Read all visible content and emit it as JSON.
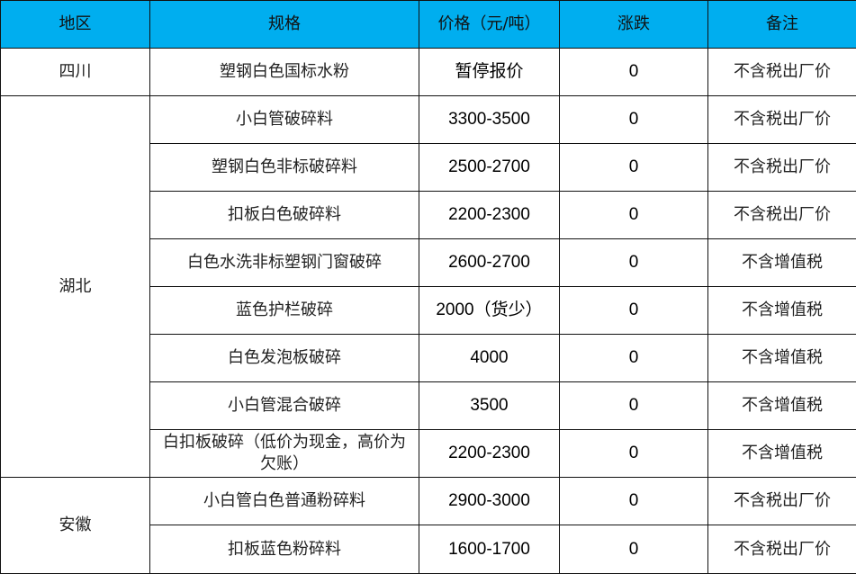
{
  "headers": [
    "地区",
    "规格",
    "价格（元/吨）",
    "涨跌",
    "备注"
  ],
  "colors": {
    "header_bg": "#00AEEF"
  },
  "groups": [
    {
      "region": "四川",
      "rows": [
        {
          "spec": "塑钢白色国标水粉",
          "price": "暂停报价",
          "change": "0",
          "note": "不含税出厂价"
        }
      ]
    },
    {
      "region": "湖北",
      "rows": [
        {
          "spec": "小白管破碎料",
          "price": "3300-3500",
          "change": "0",
          "note": "不含税出厂价"
        },
        {
          "spec": "塑钢白色非标破碎料",
          "price": "2500-2700",
          "change": "0",
          "note": "不含税出厂价"
        },
        {
          "spec": "扣板白色破碎料",
          "price": "2200-2300",
          "change": "0",
          "note": "不含税出厂价"
        },
        {
          "spec": "白色水洗非标塑钢门窗破碎",
          "price": "2600-2700",
          "change": "0",
          "note": "不含增值税"
        },
        {
          "spec": "蓝色护栏破碎",
          "price": "2000（货少）",
          "change": "0",
          "note": "不含增值税"
        },
        {
          "spec": "白色发泡板破碎",
          "price": "4000",
          "change": "0",
          "note": "不含增值税"
        },
        {
          "spec": "小白管混合破碎",
          "price": "3500",
          "change": "0",
          "note": "不含增值税"
        },
        {
          "spec": "白扣板破碎（低价为现金，高价为欠账）",
          "price": "2200-2300",
          "change": "0",
          "note": "不含增值税"
        }
      ]
    },
    {
      "region": "安徽",
      "rows": [
        {
          "spec": "小白管白色普通粉碎料",
          "price": "2900-3000",
          "change": "0",
          "note": "不含税出厂价"
        },
        {
          "spec": "扣板蓝色粉碎料",
          "price": "1600-1700",
          "change": "0",
          "note": "不含税出厂价"
        }
      ]
    }
  ]
}
